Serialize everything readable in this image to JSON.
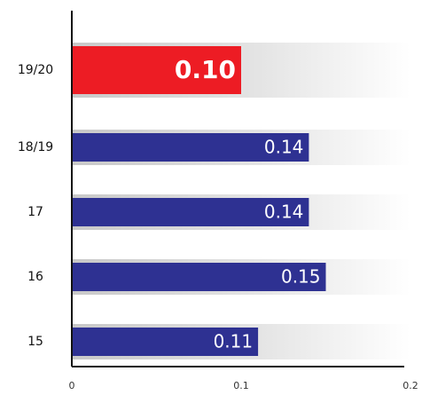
{
  "chart_data": {
    "type": "hbar",
    "categories": [
      "19/20",
      "18/19",
      "17",
      "16",
      "15"
    ],
    "values": [
      0.1,
      0.14,
      0.14,
      0.15,
      0.11
    ],
    "value_labels": [
      "0.10",
      "0.14",
      "0.14",
      "0.15",
      "0.11"
    ],
    "colors": [
      "#ed1c24",
      "#2e3192",
      "#2e3192",
      "#2e3192",
      "#2e3192"
    ],
    "highlight_index": 0,
    "xlim": [
      0,
      0.2
    ],
    "xticks": [
      0,
      0.1,
      0.2
    ]
  }
}
